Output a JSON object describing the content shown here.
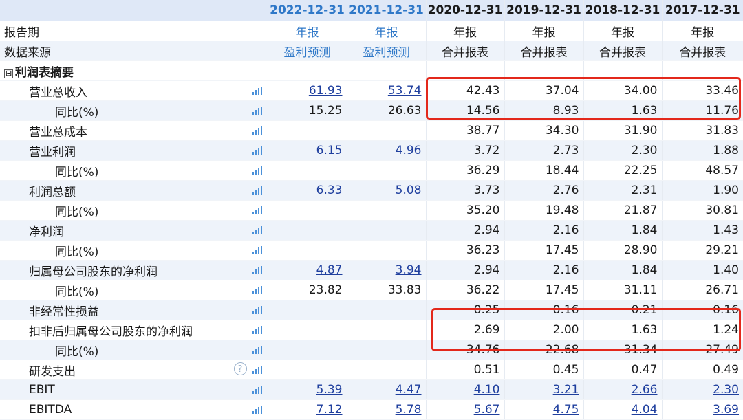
{
  "header": {
    "periods": [
      {
        "date": "2022-12-31",
        "type": "年报",
        "source": "盈利预测",
        "forecast": true
      },
      {
        "date": "2021-12-31",
        "type": "年报",
        "source": "盈利预测",
        "forecast": true
      },
      {
        "date": "2020-12-31",
        "type": "年报",
        "source": "合并报表",
        "forecast": false
      },
      {
        "date": "2019-12-31",
        "type": "年报",
        "source": "合并报表",
        "forecast": false
      },
      {
        "date": "2018-12-31",
        "type": "年报",
        "source": "合并报表",
        "forecast": false
      },
      {
        "date": "2017-12-31",
        "type": "年报",
        "source": "合并报表",
        "forecast": false
      }
    ],
    "report_period_label": "报告期",
    "data_source_label": "数据来源"
  },
  "section": {
    "toggle": "⊟",
    "title": "利润表摘要"
  },
  "rows": [
    {
      "label": "营业总收入",
      "indent": 1,
      "values": [
        "61.93",
        "53.74",
        "42.43",
        "37.04",
        "34.00",
        "33.46"
      ],
      "links": [
        0,
        1
      ]
    },
    {
      "label": "同比(%)",
      "indent": 2,
      "values": [
        "15.25",
        "26.63",
        "14.56",
        "8.93",
        "1.63",
        "11.76"
      ],
      "links": []
    },
    {
      "label": "营业总成本",
      "indent": 1,
      "values": [
        "",
        "",
        "38.77",
        "34.30",
        "31.90",
        "31.83"
      ],
      "links": []
    },
    {
      "label": "营业利润",
      "indent": 1,
      "values": [
        "6.15",
        "4.96",
        "3.72",
        "2.73",
        "2.30",
        "1.88"
      ],
      "links": [
        0,
        1
      ]
    },
    {
      "label": "同比(%)",
      "indent": 2,
      "values": [
        "",
        "",
        "36.29",
        "18.44",
        "22.25",
        "48.57"
      ],
      "links": []
    },
    {
      "label": "利润总额",
      "indent": 1,
      "values": [
        "6.33",
        "5.08",
        "3.73",
        "2.76",
        "2.31",
        "1.90"
      ],
      "links": [
        0,
        1
      ]
    },
    {
      "label": "同比(%)",
      "indent": 2,
      "values": [
        "",
        "",
        "35.20",
        "19.48",
        "21.87",
        "30.81"
      ],
      "links": []
    },
    {
      "label": "净利润",
      "indent": 1,
      "values": [
        "",
        "",
        "2.94",
        "2.16",
        "1.84",
        "1.43"
      ],
      "links": []
    },
    {
      "label": "同比(%)",
      "indent": 2,
      "values": [
        "",
        "",
        "36.23",
        "17.45",
        "28.90",
        "29.21"
      ],
      "links": []
    },
    {
      "label": "归属母公司股东的净利润",
      "indent": 1,
      "values": [
        "4.87",
        "3.94",
        "2.94",
        "2.16",
        "1.84",
        "1.40"
      ],
      "links": [
        0,
        1
      ]
    },
    {
      "label": "同比(%)",
      "indent": 2,
      "values": [
        "23.82",
        "33.83",
        "36.22",
        "17.45",
        "31.11",
        "26.71"
      ],
      "links": []
    },
    {
      "label": "非经常性损益",
      "indent": 1,
      "values": [
        "",
        "",
        "0.25",
        "0.16",
        "0.21",
        "0.16"
      ],
      "links": []
    },
    {
      "label": "扣非后归属母公司股东的净利润",
      "indent": 1,
      "values": [
        "",
        "",
        "2.69",
        "2.00",
        "1.63",
        "1.24"
      ],
      "links": []
    },
    {
      "label": "同比(%)",
      "indent": 2,
      "values": [
        "",
        "",
        "34.76",
        "22.68",
        "31.34",
        "27.49"
      ],
      "links": []
    },
    {
      "label": "研发支出",
      "indent": 1,
      "values": [
        "",
        "",
        "0.51",
        "0.45",
        "0.47",
        "0.49"
      ],
      "links": [],
      "help": true
    },
    {
      "label": "EBIT",
      "indent": 1,
      "values": [
        "5.39",
        "4.47",
        "4.10",
        "3.21",
        "2.66",
        "2.30"
      ],
      "links": [
        0,
        1,
        2,
        3,
        4,
        5
      ]
    },
    {
      "label": "EBITDA",
      "indent": 1,
      "values": [
        "7.12",
        "5.78",
        "5.67",
        "4.75",
        "4.04",
        "3.69"
      ],
      "links": [
        0,
        1,
        2,
        3,
        4,
        5
      ]
    }
  ],
  "icons": {
    "row_chart": "bar-chart-icon",
    "help": "help-icon",
    "help_glyph": "?"
  },
  "colors": {
    "header_bg": "#dfe8f7",
    "forecast_text": "#2f78c8",
    "link_text": "#1f3f9e",
    "highlight": "#e3281b"
  }
}
